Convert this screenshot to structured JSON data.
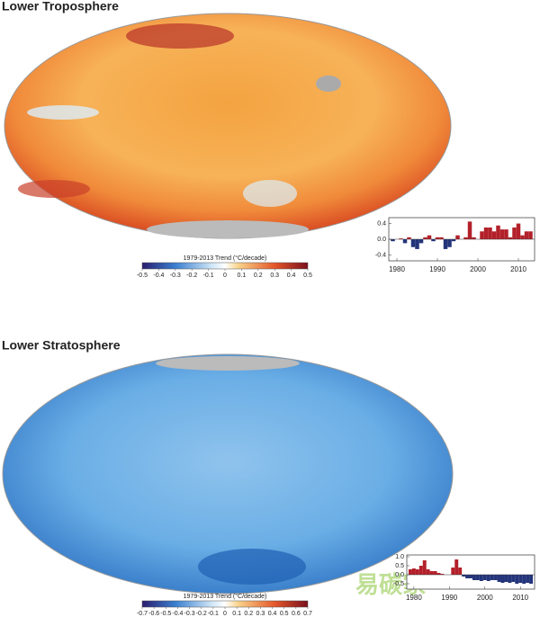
{
  "panels": [
    {
      "title": "Lower Troposphere",
      "colorbar": {
        "label": "1979-2013 Trend (°C/decade)",
        "clim": [
          -0.5,
          0.5
        ],
        "ticks": [
          -0.5,
          -0.4,
          -0.3,
          -0.2,
          -0.1,
          0,
          0.1,
          0.2,
          0.3,
          0.4,
          0.5
        ]
      },
      "inset": {
        "xlim": [
          1978,
          2014
        ],
        "ylim": [
          -0.55,
          0.55
        ],
        "xticks": [
          1980,
          1990,
          2000,
          2010
        ],
        "yticks": [
          0.4,
          {
            "value": 0,
            "label": "0.0"
          },
          -0.4
        ],
        "x": [
          1979,
          1980,
          1981,
          1982,
          1983,
          1984,
          1985,
          1986,
          1987,
          1988,
          1989,
          1990,
          1991,
          1992,
          1993,
          1994,
          1995,
          1996,
          1997,
          1998,
          1999,
          2000,
          2001,
          2002,
          2003,
          2004,
          2005,
          2006,
          2007,
          2008,
          2009,
          2010,
          2011,
          2012,
          2013
        ],
        "values": [
          -0.05,
          0.0,
          0.02,
          -0.1,
          0.05,
          -0.2,
          -0.25,
          -0.1,
          0.05,
          0.1,
          -0.05,
          0.05,
          0.05,
          -0.25,
          -0.2,
          -0.05,
          0.1,
          0.0,
          0.05,
          0.45,
          0.05,
          0.0,
          0.2,
          0.3,
          0.3,
          0.2,
          0.35,
          0.25,
          0.25,
          0.05,
          0.3,
          0.4,
          0.1,
          0.2,
          0.2
        ]
      }
    },
    {
      "title": "Lower Stratosphere",
      "colorbar": {
        "label": "1979-2013 Trend (°C/decade)",
        "clim": [
          -0.7,
          0.7
        ],
        "ticks": [
          -0.7,
          -0.6,
          -0.5,
          -0.4,
          -0.3,
          -0.2,
          -0.1,
          0,
          0.1,
          0.2,
          0.3,
          0.4,
          0.5,
          0.6,
          0.7
        ]
      },
      "inset": {
        "xlim": [
          1978,
          2014
        ],
        "ylim": [
          -0.8,
          1.1
        ],
        "xticks": [
          1980,
          1990,
          2000,
          2010
        ],
        "yticks": [
          {
            "value": 1,
            "label": "1.0"
          },
          0.5,
          {
            "value": 0,
            "label": "0.0"
          },
          -0.5
        ],
        "x": [
          1979,
          1980,
          1981,
          1982,
          1983,
          1984,
          1985,
          1986,
          1987,
          1988,
          1989,
          1990,
          1991,
          1992,
          1993,
          1994,
          1995,
          1996,
          1997,
          1998,
          1999,
          2000,
          2001,
          2002,
          2003,
          2004,
          2005,
          2006,
          2007,
          2008,
          2009,
          2010,
          2011,
          2012,
          2013
        ],
        "values": [
          0.3,
          0.35,
          0.3,
          0.5,
          0.8,
          0.3,
          0.2,
          0.2,
          0.1,
          0.05,
          0.0,
          0.0,
          0.4,
          0.85,
          0.4,
          -0.1,
          -0.2,
          -0.2,
          -0.3,
          -0.3,
          -0.35,
          -0.3,
          -0.35,
          -0.3,
          -0.3,
          -0.4,
          -0.45,
          -0.4,
          -0.45,
          -0.4,
          -0.5,
          -0.45,
          -0.5,
          -0.45,
          -0.5
        ]
      }
    }
  ],
  "watermark": "易碳家"
}
